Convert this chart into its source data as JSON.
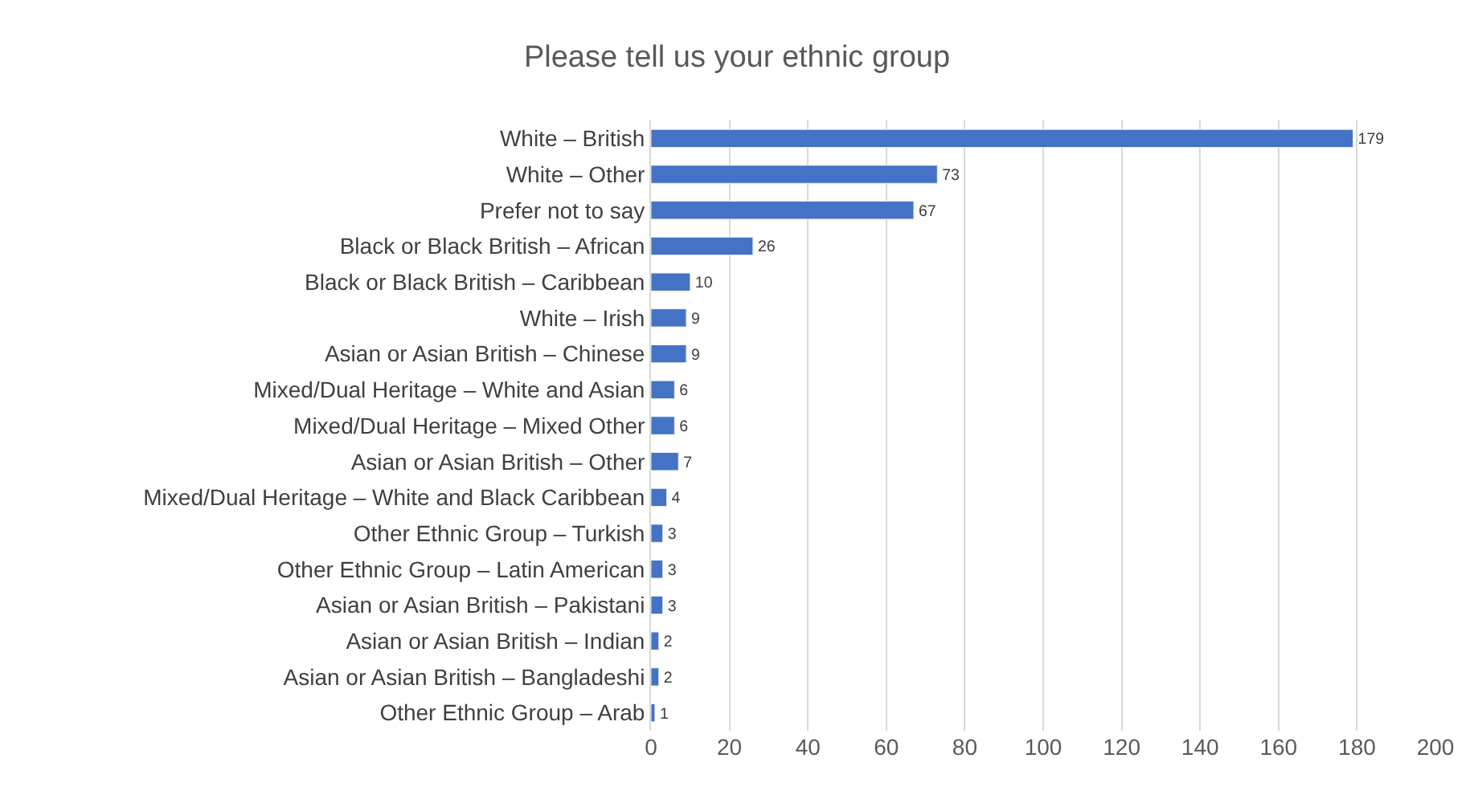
{
  "chart_data": {
    "type": "bar",
    "orientation": "horizontal",
    "title": "Please tell us your ethnic group",
    "categories": [
      "White – British",
      "White – Other",
      "Prefer not to say",
      "Black or Black British – African",
      "Black or Black British – Caribbean",
      "White – Irish",
      "Asian or Asian British – Chinese",
      "Mixed/Dual Heritage – White and Asian",
      "Mixed/Dual Heritage – Mixed Other",
      "Asian or Asian British – Other",
      "Mixed/Dual Heritage – White and Black Caribbean",
      "Other Ethnic Group – Turkish",
      "Other Ethnic Group – Latin American",
      "Asian or Asian British – Pakistani",
      "Asian or Asian British – Indian",
      "Asian or Asian British – Bangladeshi",
      "Other Ethnic Group – Arab"
    ],
    "values": [
      179,
      73,
      67,
      26,
      10,
      9,
      9,
      6,
      6,
      7,
      4,
      3,
      3,
      3,
      2,
      2,
      1
    ],
    "color": "#4472c4",
    "data_labels": true,
    "xlim": [
      0,
      200
    ],
    "xticks": [
      0,
      20,
      40,
      60,
      80,
      100,
      120,
      140,
      160,
      180,
      200
    ],
    "grid": "x"
  }
}
